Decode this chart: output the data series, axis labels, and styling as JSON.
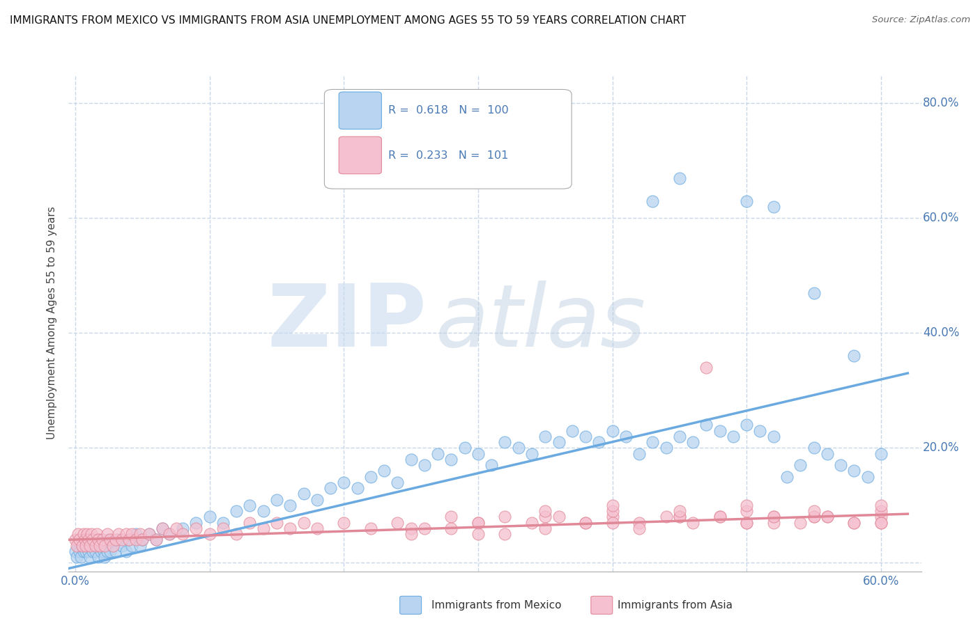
{
  "title": "IMMIGRANTS FROM MEXICO VS IMMIGRANTS FROM ASIA UNEMPLOYMENT AMONG AGES 55 TO 59 YEARS CORRELATION CHART",
  "source": "Source: ZipAtlas.com",
  "ylabel": "Unemployment Among Ages 55 to 59 years",
  "x_ticks": [
    0.0,
    0.1,
    0.2,
    0.3,
    0.4,
    0.5,
    0.6
  ],
  "y_ticks": [
    0.0,
    0.2,
    0.4,
    0.6,
    0.8
  ],
  "xlim": [
    -0.005,
    0.63
  ],
  "ylim": [
    -0.015,
    0.85
  ],
  "legend_entries": [
    {
      "label": "Immigrants from Mexico",
      "R": "0.618",
      "N": "100",
      "color": "#b8d4f0",
      "edge_color": "#6aaae0"
    },
    {
      "label": "Immigrants from Asia",
      "R": "0.233",
      "N": "101",
      "color": "#f5c0d0",
      "edge_color": "#e08898"
    }
  ],
  "watermark_zip": "ZIP",
  "watermark_atlas": "atlas",
  "background_color": "#ffffff",
  "grid_color": "#c8d8e8",
  "tick_color": "#4a7ab5",
  "mexico_trend": {
    "x_start": -0.005,
    "x_end": 0.62,
    "y_start": -0.01,
    "y_end": 0.33
  },
  "asia_trend": {
    "x_start": -0.005,
    "x_end": 0.62,
    "y_start": 0.04,
    "y_end": 0.085
  },
  "mexico_x": [
    0.0,
    0.001,
    0.002,
    0.003,
    0.004,
    0.005,
    0.006,
    0.007,
    0.008,
    0.009,
    0.01,
    0.011,
    0.012,
    0.013,
    0.014,
    0.015,
    0.016,
    0.017,
    0.018,
    0.019,
    0.02,
    0.021,
    0.022,
    0.023,
    0.024,
    0.025,
    0.026,
    0.028,
    0.03,
    0.032,
    0.035,
    0.038,
    0.04,
    0.042,
    0.045,
    0.048,
    0.05,
    0.055,
    0.06,
    0.065,
    0.07,
    0.08,
    0.09,
    0.1,
    0.11,
    0.12,
    0.13,
    0.14,
    0.15,
    0.16,
    0.17,
    0.18,
    0.19,
    0.2,
    0.21,
    0.22,
    0.23,
    0.24,
    0.25,
    0.26,
    0.27,
    0.28,
    0.29,
    0.3,
    0.31,
    0.32,
    0.33,
    0.34,
    0.35,
    0.36,
    0.37,
    0.38,
    0.39,
    0.4,
    0.41,
    0.42,
    0.43,
    0.44,
    0.45,
    0.46,
    0.47,
    0.48,
    0.49,
    0.5,
    0.51,
    0.52,
    0.53,
    0.54,
    0.55,
    0.56,
    0.57,
    0.58,
    0.59,
    0.6,
    0.43,
    0.45,
    0.5,
    0.52,
    0.55,
    0.58
  ],
  "mexico_y": [
    0.02,
    0.01,
    0.03,
    0.02,
    0.01,
    0.03,
    0.02,
    0.04,
    0.02,
    0.03,
    0.02,
    0.01,
    0.03,
    0.02,
    0.04,
    0.02,
    0.03,
    0.01,
    0.04,
    0.02,
    0.03,
    0.02,
    0.01,
    0.03,
    0.02,
    0.04,
    0.02,
    0.03,
    0.02,
    0.04,
    0.03,
    0.02,
    0.04,
    0.03,
    0.05,
    0.03,
    0.04,
    0.05,
    0.04,
    0.06,
    0.05,
    0.06,
    0.07,
    0.08,
    0.07,
    0.09,
    0.1,
    0.09,
    0.11,
    0.1,
    0.12,
    0.11,
    0.13,
    0.14,
    0.13,
    0.15,
    0.16,
    0.14,
    0.18,
    0.17,
    0.19,
    0.18,
    0.2,
    0.19,
    0.17,
    0.21,
    0.2,
    0.19,
    0.22,
    0.21,
    0.23,
    0.22,
    0.21,
    0.23,
    0.22,
    0.19,
    0.21,
    0.2,
    0.22,
    0.21,
    0.24,
    0.23,
    0.22,
    0.24,
    0.23,
    0.22,
    0.15,
    0.17,
    0.2,
    0.19,
    0.17,
    0.16,
    0.15,
    0.19,
    0.63,
    0.67,
    0.63,
    0.62,
    0.47,
    0.36
  ],
  "asia_x": [
    0.0,
    0.001,
    0.002,
    0.003,
    0.005,
    0.006,
    0.007,
    0.008,
    0.009,
    0.01,
    0.011,
    0.012,
    0.013,
    0.015,
    0.016,
    0.017,
    0.018,
    0.02,
    0.022,
    0.024,
    0.026,
    0.028,
    0.03,
    0.032,
    0.035,
    0.038,
    0.04,
    0.042,
    0.045,
    0.048,
    0.05,
    0.055,
    0.06,
    0.065,
    0.07,
    0.075,
    0.08,
    0.09,
    0.1,
    0.11,
    0.12,
    0.13,
    0.14,
    0.15,
    0.16,
    0.17,
    0.18,
    0.2,
    0.22,
    0.24,
    0.26,
    0.28,
    0.3,
    0.32,
    0.34,
    0.36,
    0.38,
    0.4,
    0.42,
    0.44,
    0.46,
    0.48,
    0.5,
    0.52,
    0.54,
    0.56,
    0.58,
    0.6,
    0.25,
    0.3,
    0.35,
    0.4,
    0.45,
    0.5,
    0.55,
    0.6,
    0.3,
    0.35,
    0.4,
    0.45,
    0.5,
    0.55,
    0.6,
    0.35,
    0.4,
    0.45,
    0.5,
    0.55,
    0.6,
    0.25,
    0.28,
    0.32,
    0.38,
    0.42,
    0.48,
    0.52,
    0.56,
    0.6,
    0.47,
    0.52,
    0.58
  ],
  "asia_y": [
    0.04,
    0.03,
    0.05,
    0.04,
    0.03,
    0.05,
    0.04,
    0.03,
    0.05,
    0.04,
    0.03,
    0.05,
    0.04,
    0.03,
    0.05,
    0.04,
    0.03,
    0.04,
    0.03,
    0.05,
    0.04,
    0.03,
    0.04,
    0.05,
    0.04,
    0.05,
    0.04,
    0.05,
    0.04,
    0.05,
    0.04,
    0.05,
    0.04,
    0.06,
    0.05,
    0.06,
    0.05,
    0.06,
    0.05,
    0.06,
    0.05,
    0.07,
    0.06,
    0.07,
    0.06,
    0.07,
    0.06,
    0.07,
    0.06,
    0.07,
    0.06,
    0.08,
    0.07,
    0.08,
    0.07,
    0.08,
    0.07,
    0.08,
    0.07,
    0.08,
    0.07,
    0.08,
    0.07,
    0.08,
    0.07,
    0.08,
    0.07,
    0.08,
    0.06,
    0.07,
    0.08,
    0.09,
    0.08,
    0.09,
    0.08,
    0.09,
    0.05,
    0.06,
    0.07,
    0.08,
    0.07,
    0.08,
    0.07,
    0.09,
    0.1,
    0.09,
    0.1,
    0.09,
    0.1,
    0.05,
    0.06,
    0.05,
    0.07,
    0.06,
    0.08,
    0.07,
    0.08,
    0.07,
    0.34,
    0.08,
    0.07
  ]
}
